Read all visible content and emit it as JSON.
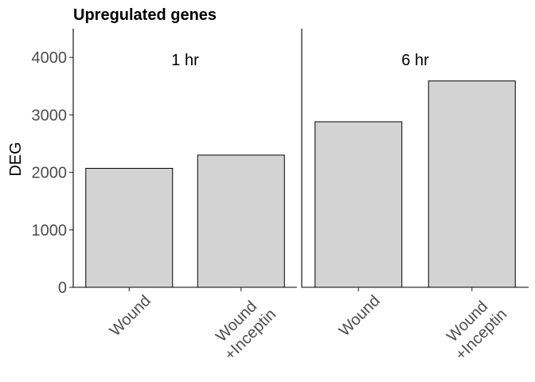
{
  "chart_data": {
    "type": "bar",
    "title": "Upregulated genes",
    "xlabel": "",
    "ylabel": "DEG",
    "ylim": [
      0,
      4500
    ],
    "yticks": [
      0,
      1000,
      2000,
      3000,
      4000
    ],
    "grid": false,
    "colors": {
      "bar_fill": "#d3d3d3",
      "bar_stroke": "#000000"
    },
    "panels": [
      {
        "label": "1 hr",
        "categories": [
          [
            "Wound"
          ],
          [
            "Wound",
            "+Inceptin"
          ]
        ],
        "values": [
          2070,
          2300
        ]
      },
      {
        "label": "6 hr",
        "categories": [
          [
            "Wound"
          ],
          [
            "Wound",
            "+Inceptin"
          ]
        ],
        "values": [
          2880,
          3590
        ]
      }
    ]
  }
}
